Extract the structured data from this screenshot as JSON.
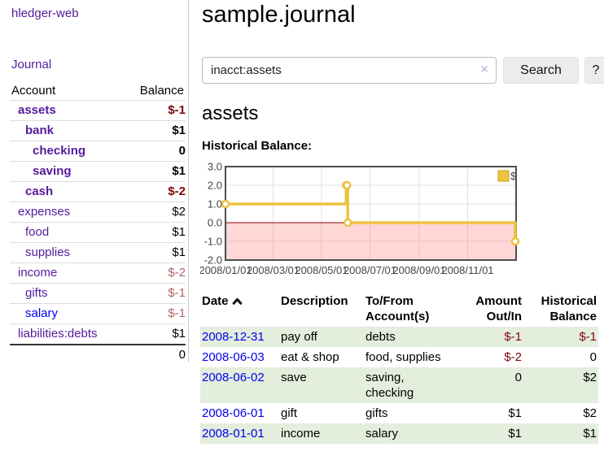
{
  "app": {
    "title": "hledger-web"
  },
  "nav": {
    "journal": "Journal"
  },
  "sidebar": {
    "accounts": {
      "header_account": "Account",
      "header_balance": "Balance",
      "rows": [
        {
          "name": "assets",
          "level": 1,
          "bold": true,
          "link_color": "purple",
          "balance": "$-1",
          "balance_color": "neg-strong"
        },
        {
          "name": "bank",
          "level": 2,
          "bold": true,
          "link_color": "purple",
          "balance": "$1",
          "balance_color": "black"
        },
        {
          "name": "checking",
          "level": 3,
          "bold": true,
          "link_color": "purple",
          "balance": "0",
          "balance_color": "black"
        },
        {
          "name": "saving",
          "level": 3,
          "bold": true,
          "link_color": "purple",
          "balance": "$1",
          "balance_color": "black"
        },
        {
          "name": "cash",
          "level": 2,
          "bold": true,
          "link_color": "purple",
          "balance": "$-2",
          "balance_color": "neg-strong"
        },
        {
          "name": "expenses",
          "level": 1,
          "bold": false,
          "link_color": "purple",
          "balance": "$2",
          "balance_color": "black"
        },
        {
          "name": "food",
          "level": 2,
          "bold": false,
          "link_color": "purple",
          "balance": "$1",
          "balance_color": "black"
        },
        {
          "name": "supplies",
          "level": 2,
          "bold": false,
          "link_color": "purple",
          "balance": "$1",
          "balance_color": "black"
        },
        {
          "name": "income",
          "level": 1,
          "bold": false,
          "link_color": "purple",
          "balance": "$-2",
          "balance_color": "neg-soft"
        },
        {
          "name": "gifts",
          "level": 2,
          "bold": false,
          "link_color": "purple",
          "balance": "$-1",
          "balance_color": "neg-soft"
        },
        {
          "name": "salary",
          "level": 2,
          "bold": false,
          "link_color": "blue",
          "balance": "$-1",
          "balance_color": "neg-soft"
        },
        {
          "name": "liabilities:debts",
          "level": 1,
          "bold": false,
          "link_color": "purple",
          "balance": "$1",
          "balance_color": "black"
        }
      ],
      "total": "0"
    }
  },
  "main": {
    "title": "sample.journal",
    "search": {
      "value": "inacct:assets",
      "clear_icon": "×",
      "button_label": "Search",
      "help_label": "?"
    },
    "account_heading": "assets",
    "chart_label": "Historical Balance:"
  },
  "register": {
    "headers": {
      "date": "Date",
      "description": "Description",
      "tofrom_line1": "To/From",
      "tofrom_line2": "Account(s)",
      "amount_line1": "Amount",
      "amount_line2": "Out/In",
      "balance_line1": "Historical",
      "balance_line2": "Balance"
    },
    "rows": [
      {
        "date": "2008-12-31",
        "description": "pay off",
        "accounts": "debts",
        "amount": "$-1",
        "amount_neg": true,
        "balance": "$-1",
        "balance_neg": true
      },
      {
        "date": "2008-06-03",
        "description": "eat & shop",
        "accounts": "food, supplies",
        "amount": "$-2",
        "amount_neg": true,
        "balance": "0",
        "balance_neg": false
      },
      {
        "date": "2008-06-02",
        "description": "save",
        "accounts": "saving, checking",
        "amount": "0",
        "amount_neg": false,
        "balance": "$2",
        "balance_neg": false
      },
      {
        "date": "2008-06-01",
        "description": "gift",
        "accounts": "gifts",
        "amount": "$1",
        "amount_neg": false,
        "balance": "$2",
        "balance_neg": false
      },
      {
        "date": "2008-01-01",
        "description": "income",
        "accounts": "salary",
        "amount": "$1",
        "amount_neg": false,
        "balance": "$1",
        "balance_neg": false
      }
    ]
  },
  "chart_data": {
    "type": "line",
    "step": true,
    "title": "Historical Balance:",
    "series": [
      {
        "name": "$",
        "color": "#edc240",
        "points": [
          [
            "2008-01-01",
            1
          ],
          [
            "2008-06-01",
            2
          ],
          [
            "2008-06-02",
            2
          ],
          [
            "2008-06-03",
            0
          ],
          [
            "2008-12-31",
            -1
          ]
        ]
      }
    ],
    "xlim": [
      "2008-01-01",
      "2009-01-01"
    ],
    "ylim": [
      -2,
      3
    ],
    "yticks": [
      3.0,
      2.0,
      1.0,
      0.0,
      -1.0,
      -2.0
    ],
    "ytick_labels": [
      "3.0",
      "2.0",
      "1.0",
      "0.0",
      "-1.0",
      "-2.0"
    ],
    "xticks": [
      "2008-01-01",
      "2008-03-01",
      "2008-05-01",
      "2008-07-01",
      "2008-09-01",
      "2008-11-01"
    ],
    "xtick_labels": [
      "2008/01/01",
      "2008/03/01",
      "2008/05/01",
      "2008/07/01",
      "2008/09/01",
      "2008/11/01"
    ],
    "grid": true,
    "grid_color": "#e0e0e0",
    "border_color": "#4d4d4d",
    "negative_region_color": "rgba(255,110,110,0.28)",
    "zero_line_color": "#8b0000",
    "legend_position": "top-right"
  }
}
